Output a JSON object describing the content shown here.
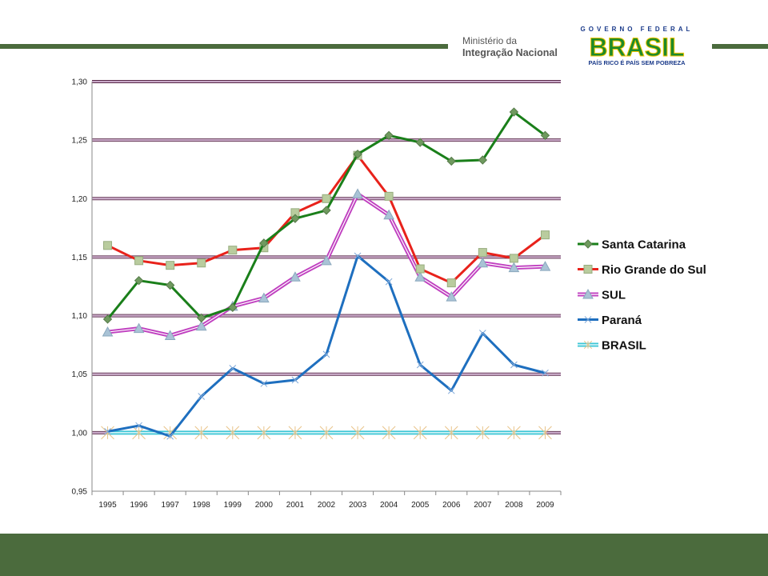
{
  "header": {
    "ministry_line1": "Ministério da",
    "ministry_line2": "Integração Nacional",
    "gov_line": "GOVERNO FEDERAL",
    "gov_brand": "BRASIL",
    "gov_slogan": "PAÍS RICO É PAÍS SEM POBREZA"
  },
  "colors": {
    "band": "#4b6b3d",
    "gridline": "#5a2a4a",
    "santa_catarina": "#1a7f1a",
    "rio_grande": "#e8221b",
    "sul": "#c040c0",
    "parana": "#1e6fbf",
    "brasil": "#3ec6d6"
  },
  "chart_data": {
    "type": "line",
    "title": "",
    "xlabel": "",
    "ylabel": "",
    "x": [
      "1995",
      "1996",
      "1997",
      "1998",
      "1999",
      "2000",
      "2001",
      "2002",
      "2003",
      "2004",
      "2005",
      "2006",
      "2007",
      "2008",
      "2009"
    ],
    "ylim": [
      0.95,
      1.3
    ],
    "yticks": [
      "0,95",
      "1,00",
      "1,05",
      "1,10",
      "1,15",
      "1,20",
      "1,25",
      "1,30"
    ],
    "grid": true,
    "legend": "right",
    "series": [
      {
        "name": "Santa Catarina",
        "marker": "diamond",
        "values": [
          1.097,
          1.13,
          1.126,
          1.098,
          1.107,
          1.162,
          1.183,
          1.19,
          1.238,
          1.254,
          1.248,
          1.232,
          1.233,
          1.274,
          1.254
        ]
      },
      {
        "name": "Rio Grande do Sul",
        "marker": "square",
        "values": [
          1.16,
          1.147,
          1.143,
          1.145,
          1.156,
          1.158,
          1.188,
          1.2,
          1.237,
          1.202,
          1.14,
          1.128,
          1.154,
          1.149,
          1.169
        ]
      },
      {
        "name": "SUL",
        "marker": "triangle",
        "values": [
          1.086,
          1.089,
          1.083,
          1.091,
          1.108,
          1.115,
          1.133,
          1.147,
          1.204,
          1.186,
          1.133,
          1.116,
          1.145,
          1.141,
          1.142
        ]
      },
      {
        "name": "Paraná",
        "marker": "x",
        "values": [
          1.001,
          1.006,
          0.997,
          1.031,
          1.055,
          1.042,
          1.045,
          1.067,
          1.151,
          1.129,
          1.058,
          1.036,
          1.085,
          1.058,
          1.051
        ]
      },
      {
        "name": "BRASIL",
        "marker": "star",
        "values": [
          1.0,
          1.0,
          1.0,
          1.0,
          1.0,
          1.0,
          1.0,
          1.0,
          1.0,
          1.0,
          1.0,
          1.0,
          1.0,
          1.0,
          1.0
        ]
      }
    ]
  }
}
